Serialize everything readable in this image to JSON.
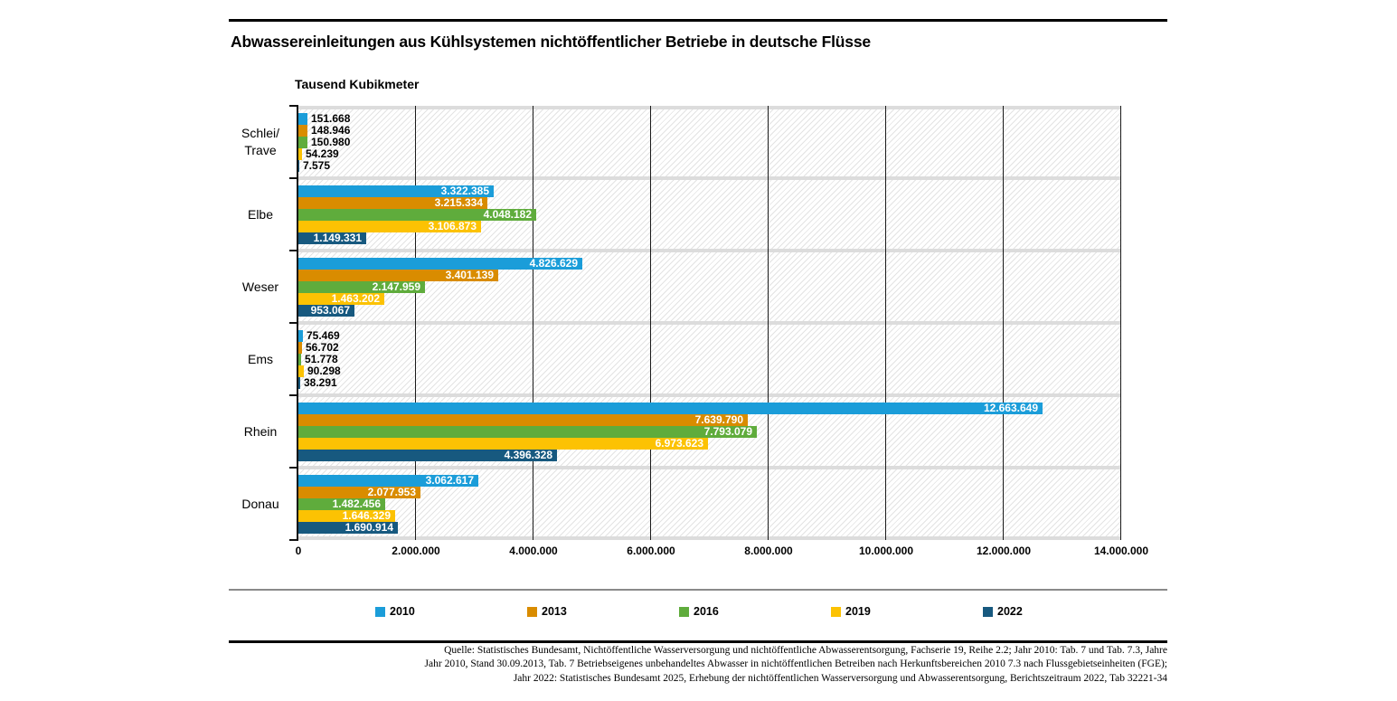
{
  "header": {
    "title": "Abwassereinleitungen aus Kühlsystemen nichtöffentlicher Betriebe in deutsche Flüsse",
    "unit_label": "Tausend Kubikmeter"
  },
  "chart_data": {
    "type": "bar",
    "orientation": "horizontal",
    "title": "Abwassereinleitungen aus Kühlsystemen nichtöffentlicher Betriebe in deutsche Flüsse",
    "unit": "Tausend Kubikmeter",
    "xlim": [
      0,
      14000000
    ],
    "grid": "vertical-major",
    "x_ticks": [
      "0",
      "2.000.000",
      "4.000.000",
      "6.000.000",
      "8.000.000",
      "10.000.000",
      "12.000.000",
      "14.000.000"
    ],
    "categories": [
      {
        "id": "schlei-trave",
        "label": "Schlei/Trave",
        "label_lines": [
          "Schlei/",
          "Trave"
        ]
      },
      {
        "id": "elbe",
        "label": "Elbe",
        "label_lines": [
          "Elbe"
        ]
      },
      {
        "id": "weser",
        "label": "Weser",
        "label_lines": [
          "Weser"
        ]
      },
      {
        "id": "ems",
        "label": "Ems",
        "label_lines": [
          "Ems"
        ]
      },
      {
        "id": "rhein",
        "label": "Rhein",
        "label_lines": [
          "Rhein"
        ]
      },
      {
        "id": "donau",
        "label": "Donau",
        "label_lines": [
          "Donau"
        ]
      }
    ],
    "series": [
      {
        "name": "2010",
        "color": "#1b9dd9",
        "values": [
          151668,
          3322385,
          4826629,
          75469,
          12663649,
          3062617
        ]
      },
      {
        "name": "2013",
        "color": "#d98c00",
        "values": [
          148946,
          3215334,
          3401139,
          56702,
          7639790,
          2077953
        ]
      },
      {
        "name": "2016",
        "color": "#5fac3c",
        "values": [
          150980,
          4048182,
          2147959,
          51778,
          7793079,
          1482456
        ]
      },
      {
        "name": "2019",
        "color": "#fcc203",
        "values": [
          54239,
          3106873,
          1463202,
          90298,
          6973623,
          1646329
        ]
      },
      {
        "name": "2022",
        "color": "#17597f",
        "values": [
          7575,
          1149331,
          953067,
          38291,
          4396328,
          1690914
        ]
      }
    ],
    "legend_position": "bottom"
  },
  "legend": {
    "items": [
      {
        "label": "2010",
        "color": "#1b9dd9"
      },
      {
        "label": "2013",
        "color": "#d98c00"
      },
      {
        "label": "2016",
        "color": "#5fac3c"
      },
      {
        "label": "2019",
        "color": "#fcc203"
      },
      {
        "label": "2022",
        "color": "#17597f"
      }
    ]
  },
  "source": {
    "lines": [
      "Quelle: Statistisches Bundesamt, Nichtöffentliche Wasserversorgung und nichtöffentliche Abwasserentsorgung,  Fachserie 19, Reihe 2.2; Jahr 2010: Tab. 7 und Tab. 7.3, Jahre",
      "Jahr 2010, Stand 30.09.2013, Tab. 7 Betriebseigenes unbehandeltes Abwasser in nichtöffentlichen Betreiben nach Herkunftsbereichen 2010 7.3 nach Flussgebietseinheiten (FGE);",
      "Jahr 2022: Statistisches Bundesamt 2025, Erhebung der nichtöffentlichen Wasserversorgung und Abwasserentsorgung, Berichtszeitraum 2022, Tab 32221-34"
    ]
  }
}
